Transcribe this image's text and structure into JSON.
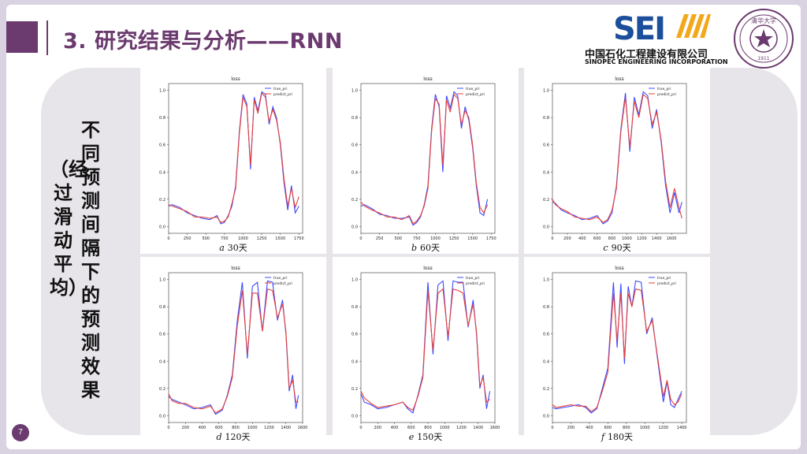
{
  "slide": {
    "title": "3. 研究结果与分析——RNN",
    "vertical_title": "不同预测间隔下的预测效果",
    "vertical_subtitle": "（经过滑动平均）",
    "page_number": "7"
  },
  "logo": {
    "mark": "SEI",
    "cn": "中国石化工程建设有限公司",
    "en": "SINOPEC ENGINEERING INCORPORATION"
  },
  "seal": {
    "text": "清华大学",
    "year": "1911"
  },
  "colors": {
    "accent": "#6b3a6e",
    "true_line": "#3b4cff",
    "pred_line": "#e8413a",
    "logo_blue": "#1b4f9c"
  },
  "chart_data": [
    {
      "type": "line",
      "title": "loss",
      "caption_letter": "a",
      "caption_text": "30天",
      "xlim": [
        0,
        1800
      ],
      "ylim": [
        -0.05,
        1.05
      ],
      "xticks": [
        0,
        250,
        500,
        750,
        1000,
        1250,
        1500,
        1750
      ],
      "yticks": [
        0.0,
        0.2,
        0.4,
        0.6,
        0.8,
        1.0
      ],
      "legend": [
        "true_pri",
        "predict_pri"
      ],
      "series": [
        {
          "name": "true_pri",
          "x": [
            0,
            50,
            150,
            250,
            350,
            450,
            550,
            650,
            700,
            750,
            800,
            850,
            900,
            950,
            1000,
            1050,
            1100,
            1150,
            1200,
            1250,
            1300,
            1350,
            1400,
            1450,
            1500,
            1550,
            1600,
            1650,
            1700,
            1750
          ],
          "y": [
            0.15,
            0.16,
            0.14,
            0.1,
            0.08,
            0.06,
            0.05,
            0.08,
            0.02,
            0.03,
            0.08,
            0.15,
            0.3,
            0.7,
            0.97,
            0.9,
            0.42,
            0.95,
            0.85,
            0.99,
            0.97,
            0.75,
            0.88,
            0.8,
            0.6,
            0.32,
            0.12,
            0.3,
            0.1,
            0.15
          ]
        },
        {
          "name": "predict_pri",
          "x": [
            0,
            50,
            150,
            250,
            350,
            450,
            550,
            650,
            700,
            750,
            800,
            850,
            900,
            950,
            1000,
            1050,
            1100,
            1150,
            1200,
            1250,
            1300,
            1350,
            1400,
            1450,
            1500,
            1550,
            1600,
            1650,
            1700,
            1750
          ],
          "y": [
            0.16,
            0.15,
            0.13,
            0.11,
            0.07,
            0.07,
            0.06,
            0.07,
            0.03,
            0.04,
            0.07,
            0.17,
            0.28,
            0.68,
            0.95,
            0.88,
            0.45,
            0.93,
            0.83,
            0.98,
            0.95,
            0.77,
            0.86,
            0.78,
            0.62,
            0.35,
            0.15,
            0.28,
            0.14,
            0.22
          ]
        }
      ]
    },
    {
      "type": "line",
      "title": "loss",
      "caption_letter": "b",
      "caption_text": "60天",
      "xlim": [
        0,
        1800
      ],
      "ylim": [
        -0.05,
        1.05
      ],
      "xticks": [
        0,
        250,
        500,
        750,
        1000,
        1250,
        1500,
        1750
      ],
      "yticks": [
        0.0,
        0.2,
        0.4,
        0.6,
        0.8,
        1.0
      ],
      "legend": [
        "true_pri",
        "predict_pri"
      ],
      "series": [
        {
          "name": "true_pri",
          "x": [
            0,
            50,
            150,
            250,
            350,
            450,
            550,
            650,
            700,
            750,
            800,
            850,
            900,
            950,
            1000,
            1050,
            1100,
            1150,
            1200,
            1250,
            1300,
            1350,
            1400,
            1450,
            1500,
            1550,
            1600,
            1650,
            1700
          ],
          "y": [
            0.15,
            0.16,
            0.13,
            0.09,
            0.08,
            0.06,
            0.06,
            0.07,
            0.01,
            0.03,
            0.07,
            0.16,
            0.3,
            0.72,
            0.97,
            0.88,
            0.4,
            0.96,
            0.87,
            0.99,
            0.96,
            0.72,
            0.88,
            0.78,
            0.58,
            0.3,
            0.1,
            0.08,
            0.2
          ]
        },
        {
          "name": "predict_pri",
          "x": [
            0,
            50,
            150,
            250,
            350,
            450,
            550,
            650,
            700,
            750,
            800,
            850,
            900,
            950,
            1000,
            1050,
            1100,
            1150,
            1200,
            1250,
            1300,
            1350,
            1400,
            1450,
            1500,
            1550,
            1600,
            1650,
            1700
          ],
          "y": [
            0.18,
            0.15,
            0.12,
            0.1,
            0.07,
            0.07,
            0.05,
            0.08,
            0.02,
            0.04,
            0.08,
            0.15,
            0.28,
            0.7,
            0.94,
            0.9,
            0.45,
            0.93,
            0.84,
            0.97,
            0.94,
            0.75,
            0.85,
            0.8,
            0.6,
            0.32,
            0.14,
            0.1,
            0.16
          ]
        }
      ]
    },
    {
      "type": "line",
      "title": "loss",
      "caption_letter": "c",
      "caption_text": "90天",
      "xlim": [
        0,
        1800
      ],
      "ylim": [
        -0.05,
        1.05
      ],
      "xticks": [
        0,
        200,
        400,
        600,
        800,
        1000,
        1200,
        1400,
        1600
      ],
      "yticks": [
        0.0,
        0.2,
        0.4,
        0.6,
        0.8,
        1.0
      ],
      "legend": [
        "true_pri",
        "predict_pri"
      ],
      "series": [
        {
          "name": "true_pri",
          "x": [
            0,
            40,
            120,
            200,
            300,
            400,
            500,
            600,
            680,
            740,
            800,
            860,
            920,
            980,
            1040,
            1100,
            1160,
            1220,
            1280,
            1340,
            1400,
            1460,
            1520,
            1580,
            1640,
            1700,
            1740
          ],
          "y": [
            0.18,
            0.17,
            0.12,
            0.1,
            0.08,
            0.05,
            0.06,
            0.08,
            0.02,
            0.04,
            0.1,
            0.3,
            0.72,
            0.98,
            0.55,
            0.95,
            0.82,
            0.99,
            0.96,
            0.72,
            0.86,
            0.62,
            0.3,
            0.1,
            0.25,
            0.1,
            0.18
          ]
        },
        {
          "name": "predict_pri",
          "x": [
            0,
            40,
            120,
            200,
            300,
            400,
            500,
            600,
            680,
            740,
            800,
            860,
            920,
            980,
            1040,
            1100,
            1160,
            1220,
            1280,
            1340,
            1400,
            1460,
            1520,
            1580,
            1640,
            1700,
            1740
          ],
          "y": [
            0.2,
            0.16,
            0.13,
            0.11,
            0.07,
            0.06,
            0.05,
            0.07,
            0.03,
            0.05,
            0.12,
            0.28,
            0.7,
            0.95,
            0.58,
            0.92,
            0.8,
            0.97,
            0.94,
            0.75,
            0.84,
            0.64,
            0.33,
            0.14,
            0.28,
            0.14,
            0.06
          ]
        }
      ]
    },
    {
      "type": "line",
      "title": "loss",
      "caption_letter": "d",
      "caption_text": "120天",
      "xlim": [
        0,
        1600
      ],
      "ylim": [
        -0.05,
        1.05
      ],
      "xticks": [
        0,
        200,
        400,
        600,
        800,
        1000,
        1200,
        1400,
        1600
      ],
      "yticks": [
        0.0,
        0.2,
        0.4,
        0.6,
        0.8,
        1.0
      ],
      "legend": [
        "true_pri",
        "predict_pri"
      ],
      "series": [
        {
          "name": "true_pri",
          "x": [
            0,
            40,
            120,
            200,
            300,
            400,
            500,
            560,
            640,
            700,
            760,
            820,
            880,
            940,
            1000,
            1060,
            1120,
            1180,
            1240,
            1300,
            1360,
            1400,
            1440,
            1480,
            1520,
            1550
          ],
          "y": [
            0.14,
            0.12,
            0.1,
            0.08,
            0.05,
            0.06,
            0.08,
            0.01,
            0.04,
            0.15,
            0.3,
            0.7,
            0.98,
            0.42,
            0.95,
            0.98,
            0.62,
            0.99,
            0.98,
            0.7,
            0.85,
            0.6,
            0.18,
            0.3,
            0.05,
            0.15
          ]
        },
        {
          "name": "predict_pri",
          "x": [
            0,
            40,
            120,
            200,
            300,
            400,
            500,
            560,
            640,
            700,
            760,
            820,
            880,
            940,
            1000,
            1060,
            1120,
            1180,
            1240,
            1300,
            1360,
            1400,
            1440,
            1480,
            1520,
            1550
          ],
          "y": [
            0.16,
            0.11,
            0.09,
            0.09,
            0.06,
            0.05,
            0.07,
            0.02,
            0.05,
            0.14,
            0.28,
            0.66,
            0.92,
            0.45,
            0.9,
            0.9,
            0.62,
            0.93,
            0.92,
            0.72,
            0.82,
            0.62,
            0.2,
            0.26,
            0.1,
            0.1
          ]
        }
      ]
    },
    {
      "type": "line",
      "title": "loss",
      "caption_letter": "e",
      "caption_text": "150天",
      "xlim": [
        0,
        1600
      ],
      "ylim": [
        -0.05,
        1.05
      ],
      "xticks": [
        0,
        200,
        400,
        600,
        800,
        1000,
        1200,
        1400,
        1600
      ],
      "yticks": [
        0.0,
        0.2,
        0.4,
        0.6,
        0.8,
        1.0
      ],
      "legend": [
        "true_pri",
        "predict_pri"
      ],
      "series": [
        {
          "name": "true_pri",
          "x": [
            0,
            40,
            120,
            200,
            300,
            400,
            500,
            560,
            620,
            680,
            740,
            800,
            860,
            920,
            980,
            1040,
            1100,
            1160,
            1220,
            1280,
            1340,
            1380,
            1420,
            1460,
            1500,
            1540
          ],
          "y": [
            0.16,
            0.1,
            0.08,
            0.05,
            0.06,
            0.08,
            0.1,
            0.05,
            0.02,
            0.15,
            0.3,
            0.98,
            0.45,
            0.96,
            0.99,
            0.55,
            0.99,
            0.98,
            0.98,
            0.65,
            0.85,
            0.6,
            0.2,
            0.3,
            0.05,
            0.18
          ]
        },
        {
          "name": "predict_pri",
          "x": [
            0,
            40,
            120,
            200,
            300,
            400,
            500,
            560,
            620,
            680,
            740,
            800,
            860,
            920,
            980,
            1040,
            1100,
            1160,
            1220,
            1280,
            1340,
            1380,
            1420,
            1460,
            1500,
            1540
          ],
          "y": [
            0.18,
            0.13,
            0.09,
            0.06,
            0.07,
            0.08,
            0.1,
            0.06,
            0.04,
            0.14,
            0.28,
            0.92,
            0.48,
            0.9,
            0.93,
            0.58,
            0.93,
            0.92,
            0.9,
            0.66,
            0.82,
            0.62,
            0.22,
            0.28,
            0.1,
            0.12
          ]
        }
      ]
    },
    {
      "type": "line",
      "title": "loss",
      "caption_letter": "f",
      "caption_text": "180天",
      "xlim": [
        0,
        1450
      ],
      "ylim": [
        -0.05,
        1.05
      ],
      "xticks": [
        0,
        200,
        400,
        600,
        800,
        1000,
        1200,
        1400
      ],
      "yticks": [
        0.0,
        0.2,
        0.4,
        0.6,
        0.8,
        1.0
      ],
      "legend": [
        "true_pri",
        "predict_pri"
      ],
      "series": [
        {
          "name": "true_pri",
          "x": [
            0,
            40,
            120,
            200,
            280,
            360,
            420,
            480,
            540,
            600,
            660,
            700,
            740,
            780,
            820,
            860,
            900,
            960,
            1020,
            1080,
            1140,
            1200,
            1240,
            1280,
            1320,
            1360,
            1400
          ],
          "y": [
            0.06,
            0.05,
            0.06,
            0.07,
            0.08,
            0.06,
            0.02,
            0.05,
            0.2,
            0.35,
            0.98,
            0.5,
            0.97,
            0.38,
            0.95,
            0.8,
            0.99,
            0.98,
            0.6,
            0.72,
            0.4,
            0.1,
            0.25,
            0.08,
            0.06,
            0.12,
            0.18
          ]
        },
        {
          "name": "predict_pri",
          "x": [
            0,
            40,
            120,
            200,
            280,
            360,
            420,
            480,
            540,
            600,
            660,
            700,
            740,
            780,
            820,
            860,
            900,
            960,
            1020,
            1080,
            1140,
            1200,
            1240,
            1280,
            1320,
            1360,
            1400
          ],
          "y": [
            0.08,
            0.06,
            0.07,
            0.08,
            0.07,
            0.07,
            0.03,
            0.06,
            0.18,
            0.32,
            0.9,
            0.55,
            0.9,
            0.42,
            0.9,
            0.8,
            0.93,
            0.92,
            0.62,
            0.7,
            0.42,
            0.14,
            0.26,
            0.12,
            0.08,
            0.1,
            0.16
          ]
        }
      ]
    }
  ]
}
